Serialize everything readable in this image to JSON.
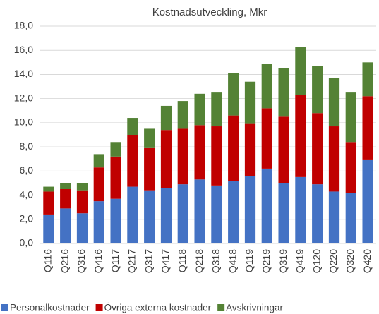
{
  "chart_data": {
    "type": "stacked_bar",
    "title": "Kostnadsutveckling, Mkr",
    "categories": [
      "Q116",
      "Q216",
      "Q316",
      "Q416",
      "Q117",
      "Q217",
      "Q317",
      "Q417",
      "Q118",
      "Q218",
      "Q318",
      "Q418",
      "Q119",
      "Q219",
      "Q319",
      "Q419",
      "Q120",
      "Q220",
      "Q320",
      "Q420"
    ],
    "series": [
      {
        "name": "Personalkostnader",
        "color": "#4472c4",
        "values": [
          2.4,
          2.9,
          2.5,
          3.5,
          3.7,
          4.7,
          4.4,
          4.6,
          4.9,
          5.3,
          4.8,
          5.2,
          5.6,
          6.2,
          5.0,
          5.5,
          4.9,
          4.3,
          4.2,
          6.9
        ]
      },
      {
        "name": "Övriga externa kostnader",
        "color": "#c00000",
        "values": [
          1.9,
          1.6,
          1.9,
          2.8,
          3.5,
          4.3,
          3.5,
          4.8,
          4.6,
          4.5,
          4.9,
          5.4,
          4.3,
          5.0,
          5.5,
          6.8,
          5.9,
          5.4,
          4.2,
          5.3
        ]
      },
      {
        "name": "Avskrivningar",
        "color": "#548235",
        "values": [
          0.4,
          0.5,
          0.6,
          1.1,
          1.2,
          1.4,
          1.6,
          2.0,
          2.3,
          2.6,
          2.8,
          3.5,
          3.5,
          3.7,
          4.0,
          4.0,
          3.9,
          4.0,
          4.1,
          2.8
        ]
      }
    ],
    "ylim": [
      0,
      18
    ],
    "yticks": [
      {
        "value": 0,
        "label": "0,0"
      },
      {
        "value": 2,
        "label": "2,0"
      },
      {
        "value": 4,
        "label": "4,0"
      },
      {
        "value": 6,
        "label": "6,0"
      },
      {
        "value": 8,
        "label": "8,0"
      },
      {
        "value": 10,
        "label": "10,0"
      },
      {
        "value": 12,
        "label": "12,0"
      },
      {
        "value": 14,
        "label": "14,0"
      },
      {
        "value": 16,
        "label": "16,0"
      },
      {
        "value": 18,
        "label": "18,0"
      }
    ],
    "grid": true,
    "legend": "bottom"
  }
}
